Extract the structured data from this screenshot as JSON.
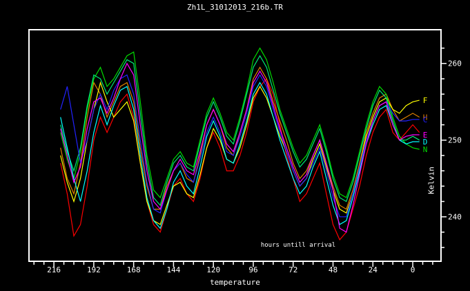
{
  "window": {
    "background": "#000000",
    "foreground": "#ffffff"
  },
  "chart_data": {
    "type": "line",
    "title": "Zh1L_31012013_216b.TR",
    "xlabel": "temperature",
    "ylabel": "Kelvin",
    "annotation": "hours untill arrival",
    "grid": false,
    "legend_position": "line-end-letters",
    "xlim": [
      231,
      -17
    ],
    "ylim": [
      234.2,
      264.4
    ],
    "x_ticks_major": [
      216,
      192,
      168,
      144,
      120,
      96,
      72,
      48,
      24,
      0
    ],
    "x_ticks_minor": [
      228,
      222,
      210,
      204,
      198,
      186,
      180,
      174,
      162,
      156,
      150,
      138,
      132,
      126,
      114,
      108,
      102,
      90,
      84,
      78,
      66,
      60,
      54,
      42,
      36,
      30,
      18,
      12,
      6,
      -6,
      -12
    ],
    "y_ticks_major": [
      240,
      250,
      260
    ],
    "y_ticks_minor": [
      236,
      238,
      242,
      244,
      246,
      248,
      252,
      254,
      256,
      258,
      262
    ],
    "x": [
      212,
      208,
      204,
      200,
      196,
      192,
      188,
      184,
      180,
      176,
      172,
      168,
      164,
      160,
      156,
      152,
      148,
      144,
      140,
      136,
      132,
      128,
      124,
      120,
      116,
      112,
      108,
      104,
      100,
      96,
      92,
      88,
      84,
      80,
      76,
      72,
      68,
      64,
      60,
      56,
      52,
      48,
      44,
      40,
      36,
      32,
      28,
      24,
      20,
      16,
      12,
      8,
      4,
      0,
      -4
    ],
    "series": [
      {
        "name": "red",
        "color": "#ff0000",
        "end_label": "",
        "values": [
          247,
          243,
          237.5,
          239,
          244,
          250,
          253,
          251,
          253,
          255,
          256,
          253,
          247,
          242,
          239,
          238,
          241,
          244,
          245,
          243,
          242,
          245,
          249,
          251,
          249,
          246,
          246,
          248,
          251,
          255,
          257,
          258,
          256,
          252,
          248,
          245,
          242,
          243,
          245,
          247,
          243,
          239,
          237,
          238,
          241,
          244,
          248,
          251,
          253,
          254,
          251,
          250,
          251,
          252,
          251
        ]
      },
      {
        "name": "orange",
        "color": "#e08000",
        "end_label": "H",
        "values": [
          249,
          245,
          243,
          247,
          253,
          257.5,
          256,
          253,
          255,
          257,
          257.5,
          255,
          249,
          244,
          241,
          241,
          244,
          246,
          247,
          245,
          244.5,
          248,
          252,
          254,
          252,
          249,
          248,
          251,
          254,
          258,
          259.5,
          258,
          255,
          252.5,
          250,
          247,
          245,
          246,
          248,
          250,
          247,
          244,
          241.5,
          241,
          243.5,
          247,
          251,
          253.5,
          255.5,
          256,
          254,
          252.5,
          253,
          253.5,
          253
        ]
      },
      {
        "name": "yellow",
        "color": "#ffff00",
        "end_label": "F",
        "values": [
          248,
          244.5,
          242,
          245,
          250,
          254,
          257.5,
          255,
          253,
          254,
          255,
          252.5,
          247,
          242,
          239.5,
          239,
          241.5,
          244,
          244.5,
          243,
          242.5,
          245.5,
          249,
          251.5,
          250,
          247.5,
          247,
          249,
          252,
          255.5,
          257,
          255.5,
          253,
          250.5,
          248.5,
          246,
          244,
          245,
          247.5,
          249.5,
          246.5,
          243.5,
          241,
          240.5,
          243,
          246.5,
          250.5,
          253,
          255,
          255.5,
          254,
          253.5,
          254.5,
          255,
          255.2
        ]
      },
      {
        "name": "green",
        "color": "#00dd00",
        "end_label": "N",
        "values": [
          251,
          247.5,
          245,
          248.5,
          254,
          258,
          259.5,
          257,
          258,
          259.5,
          261,
          261.5,
          255,
          248,
          243.5,
          242.5,
          245,
          247.5,
          248.5,
          247,
          246.5,
          250,
          253.5,
          255.5,
          253.5,
          251,
          250,
          253,
          256.5,
          260.5,
          262,
          260.5,
          257.5,
          254,
          251.5,
          249,
          247,
          248,
          250,
          252,
          249,
          245.5,
          243,
          242.5,
          245,
          248.5,
          252,
          255,
          257,
          256,
          253,
          250.5,
          249.5,
          249,
          248.8
        ]
      },
      {
        "name": "spring-green",
        "color": "#00e87a",
        "end_label": "",
        "values": [
          252,
          248.5,
          246,
          249,
          254.5,
          258.5,
          258,
          256,
          257.5,
          259,
          260.5,
          260,
          253.5,
          247,
          242.5,
          241.5,
          244.5,
          247,
          248,
          246.5,
          246,
          249.5,
          253,
          255,
          253,
          250.5,
          249.5,
          252.5,
          256,
          259.5,
          261,
          259.5,
          256.5,
          253.5,
          251,
          248.5,
          246.5,
          247.5,
          249.5,
          251.5,
          248.5,
          245,
          242.5,
          242,
          244.5,
          248,
          251.5,
          254.5,
          256.5,
          255.5,
          252.5,
          250,
          250,
          250.5,
          250
        ]
      },
      {
        "name": "cyan",
        "color": "#00ffff",
        "end_label": "D",
        "values": [
          253,
          249,
          245,
          242,
          246,
          251,
          254.5,
          252,
          254.5,
          256.5,
          257,
          254,
          248,
          242.5,
          239.5,
          238.5,
          241,
          244.5,
          246,
          244,
          243,
          246.5,
          250.5,
          252.5,
          250.5,
          247.5,
          247,
          249.5,
          252.5,
          256,
          257.5,
          256,
          253,
          250,
          247.5,
          245,
          243,
          244,
          246.5,
          248.5,
          245,
          241.5,
          239,
          239.5,
          242.5,
          246,
          249.5,
          252,
          254,
          254.5,
          252,
          250,
          249.5,
          249.8,
          249.8
        ]
      },
      {
        "name": "blue",
        "color": "#2222ff",
        "end_label": "C",
        "values": [
          254,
          257,
          252,
          247,
          250,
          254,
          256,
          254,
          256.5,
          258,
          258.5,
          256,
          250,
          244.5,
          241,
          240.5,
          243.5,
          246,
          247,
          245.5,
          244.5,
          247.5,
          251,
          253,
          251,
          248.5,
          248,
          250.5,
          253.5,
          257,
          258.5,
          257,
          254,
          251,
          248.5,
          246,
          244,
          245,
          247,
          249,
          246,
          242.5,
          240,
          240,
          243,
          246.5,
          250,
          252.5,
          254.5,
          255,
          253.5,
          252.5,
          252.5,
          252.7,
          252.7
        ]
      },
      {
        "name": "magenta",
        "color": "#ff00ff",
        "end_label": "E",
        "values": [
          251.5,
          248,
          244.5,
          246.5,
          251.5,
          255,
          255.5,
          253.5,
          255.5,
          258,
          260,
          258.5,
          252,
          246,
          242,
          241,
          243.5,
          246,
          247.5,
          246,
          245.5,
          248.5,
          252,
          254,
          252,
          249.5,
          248.5,
          251,
          254,
          257.5,
          259,
          257.5,
          254.5,
          251.5,
          249,
          246.5,
          244.5,
          245.5,
          248,
          250,
          247,
          243.5,
          238.5,
          238,
          241.5,
          245.5,
          249.5,
          252.5,
          254.5,
          255,
          252,
          250,
          250.5,
          250.7,
          250.7
        ]
      }
    ]
  }
}
